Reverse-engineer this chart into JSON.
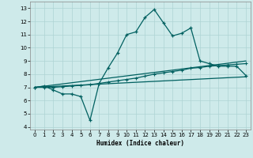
{
  "xlabel": "Humidex (Indice chaleur)",
  "bg_color": "#ceeaea",
  "grid_color": "#aed4d4",
  "line_color": "#006060",
  "xlim": [
    -0.5,
    23.5
  ],
  "ylim": [
    3.8,
    13.5
  ],
  "yticks": [
    4,
    5,
    6,
    7,
    8,
    9,
    10,
    11,
    12,
    13
  ],
  "xticks": [
    0,
    1,
    2,
    3,
    4,
    5,
    6,
    7,
    8,
    9,
    10,
    11,
    12,
    13,
    14,
    15,
    16,
    17,
    18,
    19,
    20,
    21,
    22,
    23
  ],
  "series1_x": [
    0,
    1,
    2,
    3,
    4,
    5,
    6,
    7,
    8,
    9,
    10,
    11,
    12,
    13,
    14,
    15,
    16,
    17,
    18,
    19,
    20,
    21,
    22,
    23
  ],
  "series1_y": [
    7.0,
    7.1,
    6.8,
    6.5,
    6.5,
    6.3,
    4.5,
    7.3,
    8.5,
    9.6,
    11.0,
    11.2,
    12.3,
    12.9,
    11.9,
    10.9,
    11.1,
    11.5,
    9.0,
    8.8,
    8.6,
    8.6,
    8.6,
    7.9
  ],
  "series2_x": [
    0,
    1,
    2,
    3,
    4,
    5,
    6,
    7,
    8,
    9,
    10,
    11,
    12,
    13,
    14,
    15,
    16,
    17,
    18,
    19,
    20,
    21,
    22,
    23
  ],
  "series2_y": [
    7.0,
    7.0,
    7.0,
    7.05,
    7.1,
    7.15,
    7.2,
    7.3,
    7.4,
    7.5,
    7.6,
    7.7,
    7.85,
    8.0,
    8.1,
    8.2,
    8.3,
    8.45,
    8.5,
    8.6,
    8.65,
    8.7,
    8.75,
    8.8
  ],
  "series3_x": [
    0,
    23
  ],
  "series3_y": [
    7.0,
    9.0
  ],
  "series4_x": [
    0,
    23
  ],
  "series4_y": [
    7.0,
    7.8
  ]
}
